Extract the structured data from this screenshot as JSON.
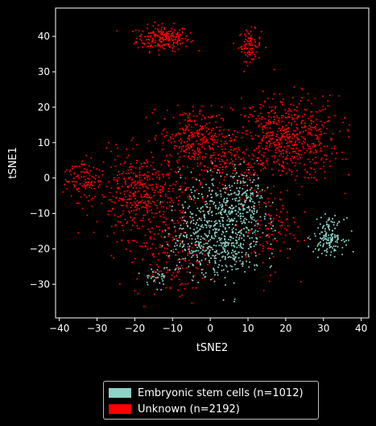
{
  "chart_data": {
    "type": "scatter",
    "xlabel": "tSNE2",
    "ylabel": "tSNE1",
    "xlim": [
      -41,
      42
    ],
    "ylim": [
      -39.5,
      48
    ],
    "xticks": [
      "−40",
      "−30",
      "−20",
      "−10",
      "0",
      "10",
      "20",
      "30",
      "40"
    ],
    "yticks": [
      "−30",
      "−20",
      "−10",
      "0",
      "10",
      "20",
      "30",
      "40"
    ],
    "xtick_values": [
      -40,
      -30,
      -20,
      -10,
      0,
      10,
      20,
      30,
      40
    ],
    "ytick_values": [
      -30,
      -20,
      -10,
      0,
      10,
      20,
      30,
      40
    ],
    "grid": false,
    "legend_position": "below",
    "background_color": "#000000",
    "series": [
      {
        "name": "Embryonic stem cells (n=1012)",
        "color": "#8dd3c7",
        "count": 1012,
        "clusters": [
          {
            "cx": 3,
            "cy": -13,
            "sx": 5.5,
            "sy": 7,
            "n": 560
          },
          {
            "cx": 10,
            "cy": -6,
            "sx": 3,
            "sy": 4,
            "n": 110
          },
          {
            "cx": -5,
            "cy": -20,
            "sx": 4,
            "sy": 4,
            "n": 100
          },
          {
            "cx": 31.5,
            "cy": -16.5,
            "sx": 2,
            "sy": 2.5,
            "n": 150
          },
          {
            "cx": -14,
            "cy": -28,
            "sx": 2,
            "sy": 1.5,
            "n": 35
          },
          {
            "cx": 5,
            "cy": -23,
            "sx": 4,
            "sy": 3,
            "n": 57
          }
        ]
      },
      {
        "name": "Unknown (n=2192)",
        "color": "#ff0000",
        "count": 2192,
        "clusters": [
          {
            "cx": -12.5,
            "cy": 39.5,
            "sx": 3.5,
            "sy": 1.8,
            "n": 220
          },
          {
            "cx": 10.5,
            "cy": 37.5,
            "sx": 1.5,
            "sy": 2.2,
            "n": 90
          },
          {
            "cx": 20,
            "cy": 11,
            "sx": 7,
            "sy": 6,
            "n": 620
          },
          {
            "cx": -18,
            "cy": -5,
            "sx": 6,
            "sy": 6,
            "n": 470
          },
          {
            "cx": -5,
            "cy": 12,
            "sx": 4,
            "sy": 4,
            "n": 230
          },
          {
            "cx": -34,
            "cy": 0,
            "sx": 2.5,
            "sy": 3,
            "n": 100
          },
          {
            "cx": 3,
            "cy": 5,
            "sx": 5,
            "sy": 5,
            "n": 180
          },
          {
            "cx": -10,
            "cy": -22,
            "sx": 5,
            "sy": 6,
            "n": 160
          },
          {
            "cx": 15,
            "cy": -14,
            "sx": 4,
            "sy": 6,
            "n": 122
          }
        ]
      }
    ]
  }
}
